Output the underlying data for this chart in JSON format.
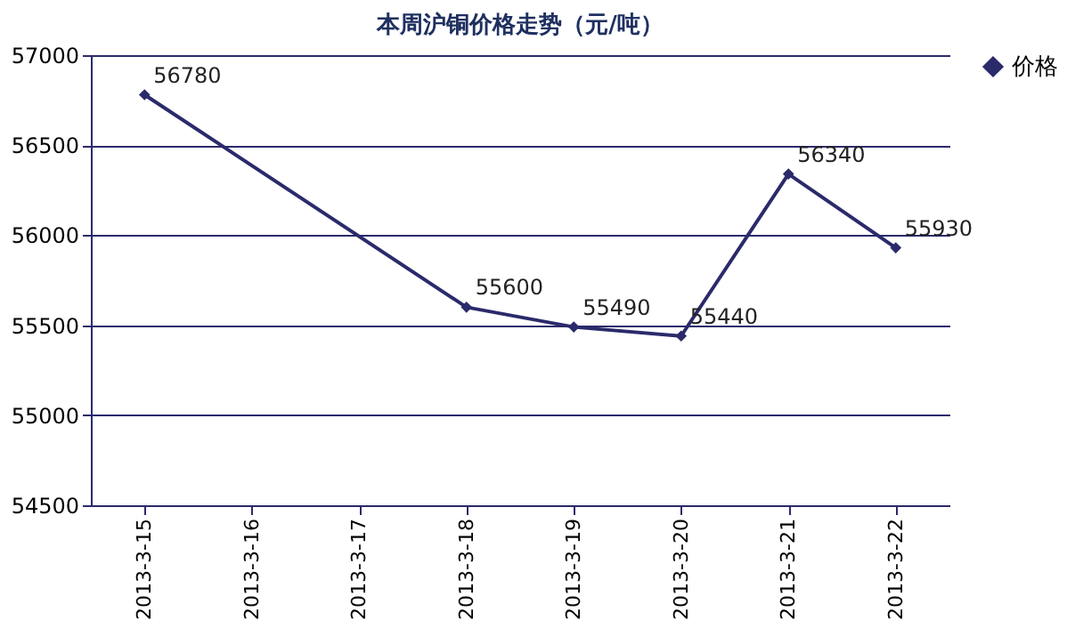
{
  "chart_data": {
    "type": "line",
    "title": "本周沪铜价格走势（元/吨）",
    "categories": [
      "2013-3-15",
      "2013-3-16",
      "2013-3-17",
      "2013-3-18",
      "2013-3-19",
      "2013-3-20",
      "2013-3-21",
      "2013-3-22"
    ],
    "series": [
      {
        "name": "价格",
        "color": "#2b2a6b",
        "values": [
          56780,
          null,
          null,
          55600,
          55490,
          55440,
          56340,
          55930
        ]
      }
    ],
    "ylim": [
      54500,
      57000
    ],
    "yticks": [
      54500,
      55000,
      55500,
      56000,
      56500,
      57000
    ],
    "grid": "y",
    "legend": "right",
    "marker": "diamond",
    "data_labels": true
  }
}
